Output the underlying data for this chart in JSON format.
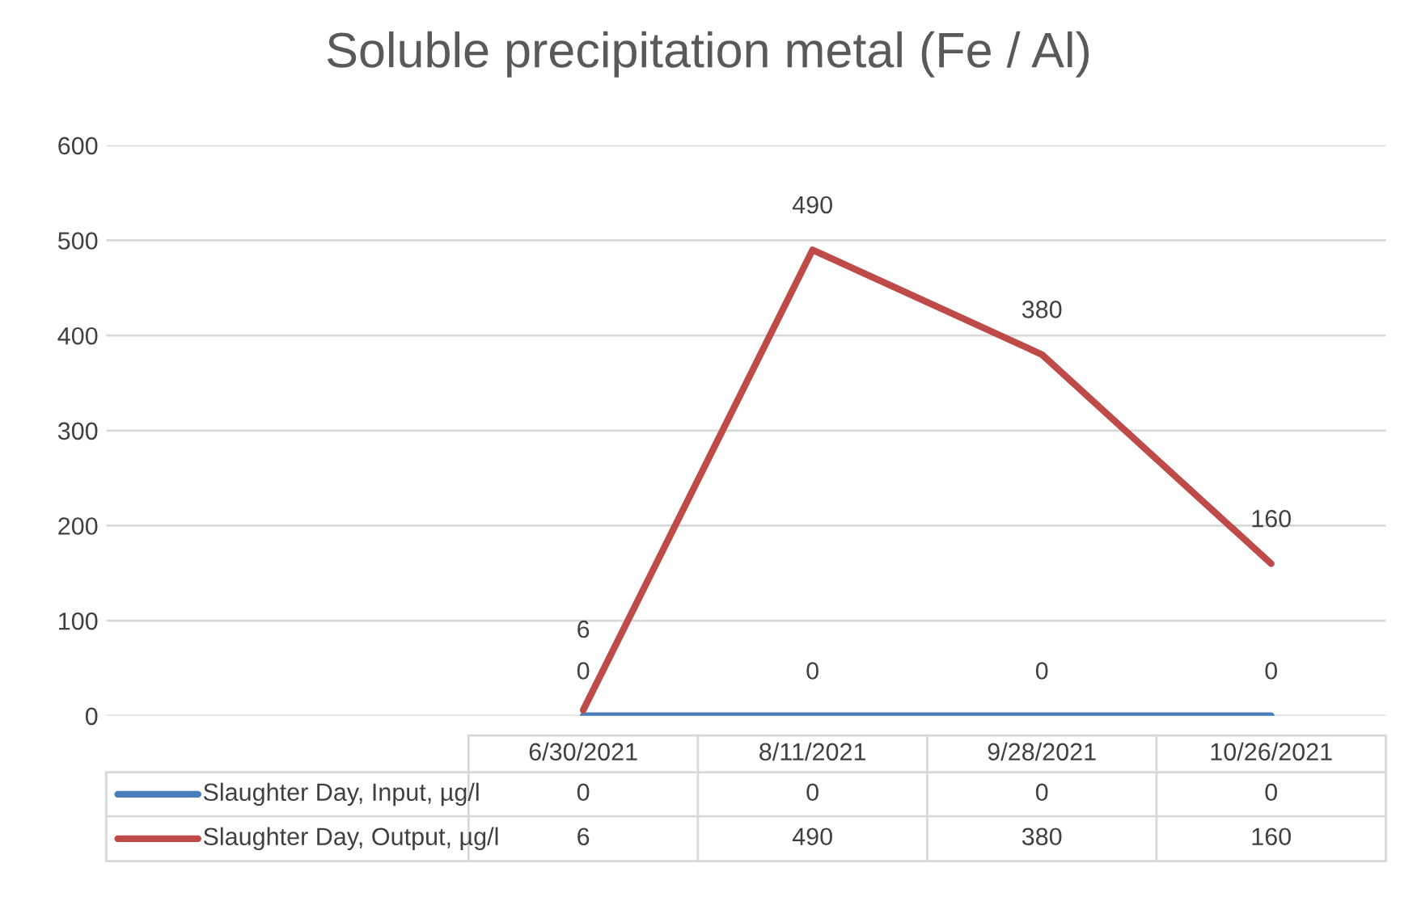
{
  "chart_data": {
    "type": "line",
    "title": "Soluble precipitation metal (Fe / Al)",
    "categories": [
      "6/30/2021",
      "8/11/2021",
      "9/28/2021",
      "10/26/2021"
    ],
    "series": [
      {
        "name": "Slaughter Day, Input, µg/l",
        "color": "#4a7ebb",
        "values": [
          0,
          0,
          0,
          0
        ]
      },
      {
        "name": "Slaughter Day, Output, µg/l",
        "color": "#be4b48",
        "values": [
          6,
          490,
          380,
          160
        ]
      }
    ],
    "annotations": [
      {
        "text": "0",
        "x": "6/30/2021",
        "y": 0
      },
      {
        "text": "0",
        "x": "8/11/2021",
        "y": 0
      },
      {
        "text": "0",
        "x": "9/28/2021",
        "y": 0
      },
      {
        "text": "0",
        "x": "10/26/2021",
        "y": 0
      },
      {
        "text": "6",
        "x": "6/30/2021",
        "y": 6
      },
      {
        "text": "490",
        "x": "8/11/2021",
        "y": 490
      },
      {
        "text": "380",
        "x": "9/28/2021",
        "y": 380
      },
      {
        "text": "160",
        "x": "10/26/2021",
        "y": 160
      }
    ],
    "ylim": [
      0,
      600
    ],
    "yticks": [
      0,
      100,
      200,
      300,
      400,
      500,
      600
    ],
    "grid": "y",
    "legend": "bottom",
    "data_labels": true,
    "marker": "none",
    "line_style": "solid"
  }
}
